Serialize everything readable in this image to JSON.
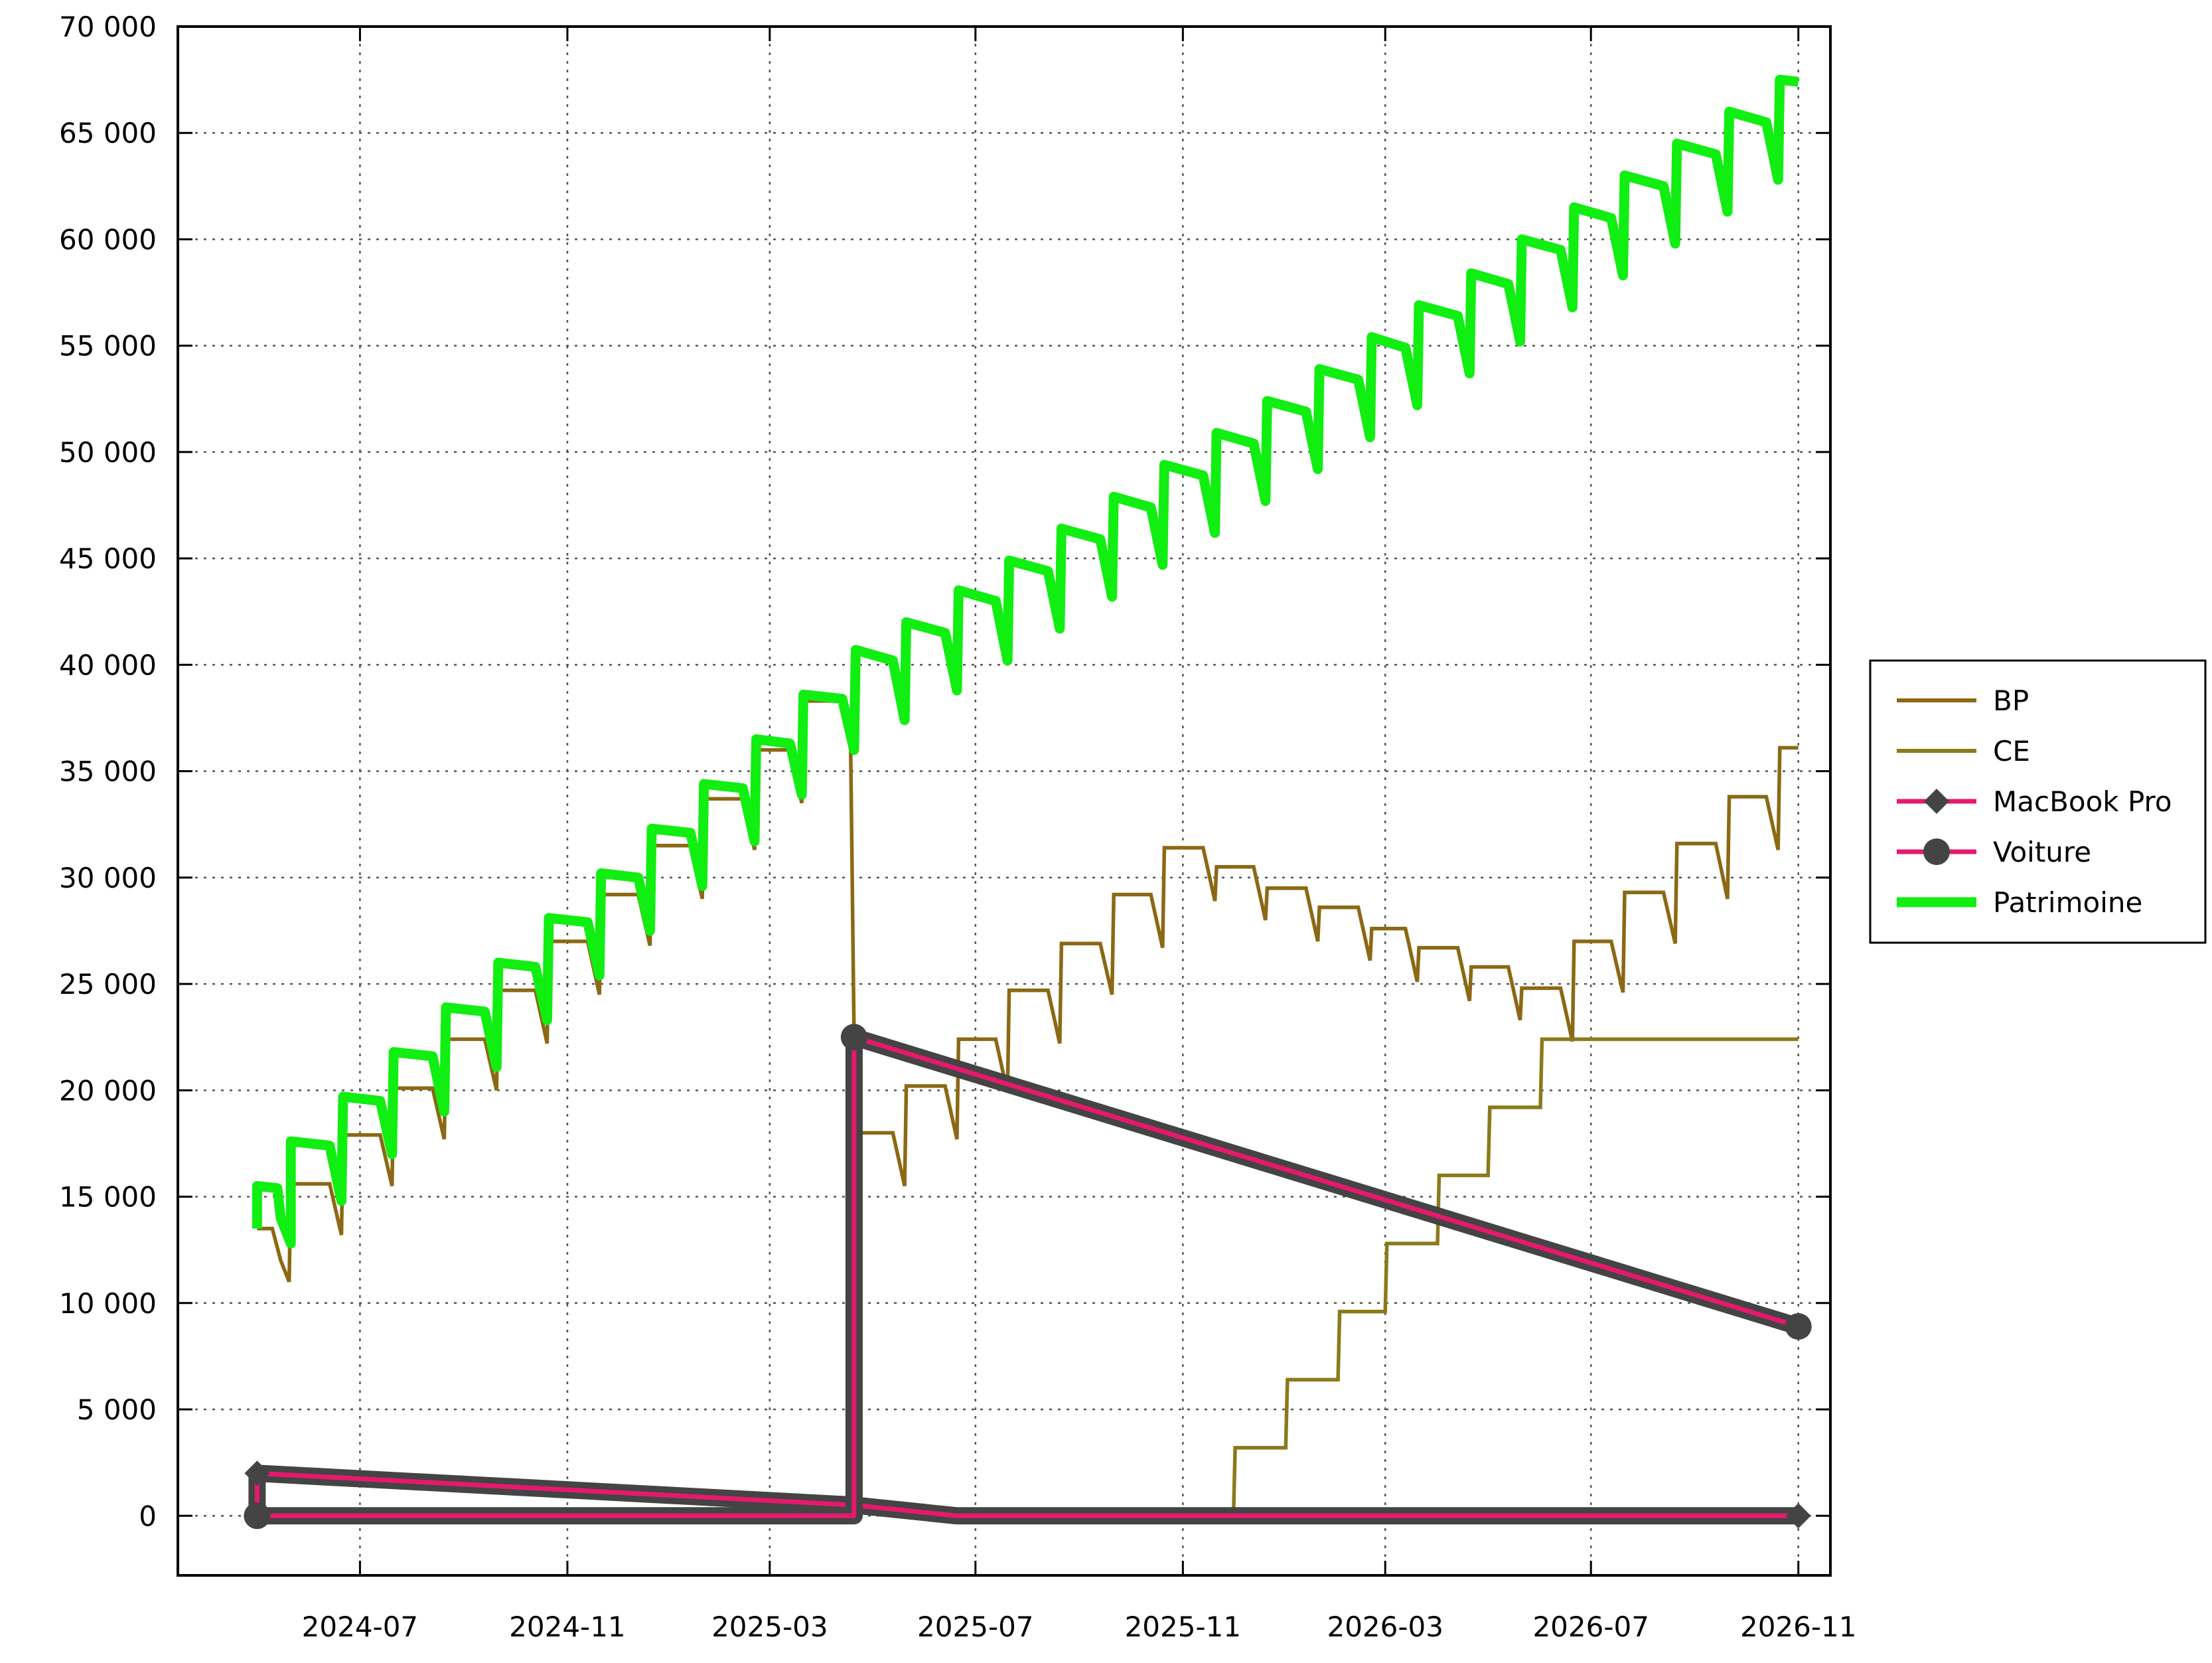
{
  "chart_data": {
    "type": "line",
    "title": "",
    "xlabel": "",
    "ylabel": "",
    "x_ticks": [
      "2024-07",
      "2024-11",
      "2025-03",
      "2025-07",
      "2025-11",
      "2026-03",
      "2026-07",
      "2026-11"
    ],
    "y_ticks": [
      "0",
      "5 000",
      "10 000",
      "15 000",
      "20 000",
      "25 000",
      "30 000",
      "35 000",
      "40 000",
      "45 000",
      "50 000",
      "55 000",
      "60 000",
      "65 000",
      "70 000"
    ],
    "xlim": [
      "2024-03-15",
      "2026-11-20"
    ],
    "ylim": [
      -2800,
      70000
    ],
    "grid": true,
    "legend_position": "right",
    "series": [
      {
        "name": "BP",
        "color": "#8b6914",
        "style": "line",
        "points": [
          [
            "2024-05-01",
            13500
          ],
          [
            "2024-05-10",
            13500
          ],
          [
            "2024-05-15",
            12000
          ],
          [
            "2024-05-20",
            11000
          ],
          [
            "2024-05-21",
            15600
          ],
          [
            "2024-06-13",
            15600
          ],
          [
            "2024-06-20",
            13200
          ],
          [
            "2024-06-21",
            17900
          ],
          [
            "2024-07-13",
            17900
          ],
          [
            "2024-07-20",
            15500
          ],
          [
            "2024-07-21",
            20100
          ],
          [
            "2024-08-13",
            20100
          ],
          [
            "2024-08-20",
            17700
          ],
          [
            "2024-08-21",
            22400
          ],
          [
            "2024-09-13",
            22400
          ],
          [
            "2024-09-20",
            20000
          ],
          [
            "2024-09-21",
            24700
          ],
          [
            "2024-10-13",
            24700
          ],
          [
            "2024-10-20",
            22200
          ],
          [
            "2024-10-21",
            27000
          ],
          [
            "2024-11-13",
            27000
          ],
          [
            "2024-11-20",
            24500
          ],
          [
            "2024-11-21",
            29200
          ],
          [
            "2024-12-13",
            29200
          ],
          [
            "2024-12-20",
            26800
          ],
          [
            "2024-12-21",
            31500
          ],
          [
            "2025-01-13",
            31500
          ],
          [
            "2025-01-20",
            29000
          ],
          [
            "2025-01-21",
            33700
          ],
          [
            "2025-02-13",
            33700
          ],
          [
            "2025-02-20",
            31300
          ],
          [
            "2025-02-21",
            36000
          ],
          [
            "2025-03-13",
            36000
          ],
          [
            "2025-03-20",
            33500
          ],
          [
            "2025-03-21",
            38300
          ],
          [
            "2025-04-13",
            38300
          ],
          [
            "2025-04-18",
            36000
          ],
          [
            "2025-04-20",
            22500
          ],
          [
            "2025-04-21",
            18000
          ],
          [
            "2025-05-13",
            18000
          ],
          [
            "2025-05-20",
            15500
          ],
          [
            "2025-05-21",
            20200
          ],
          [
            "2025-06-13",
            20200
          ],
          [
            "2025-06-20",
            17700
          ],
          [
            "2025-06-21",
            22400
          ],
          [
            "2025-07-13",
            22400
          ],
          [
            "2025-07-20",
            19900
          ],
          [
            "2025-07-21",
            24700
          ],
          [
            "2025-08-13",
            24700
          ],
          [
            "2025-08-20",
            22200
          ],
          [
            "2025-08-21",
            26900
          ],
          [
            "2025-09-13",
            26900
          ],
          [
            "2025-09-20",
            24500
          ],
          [
            "2025-09-21",
            29200
          ],
          [
            "2025-10-13",
            29200
          ],
          [
            "2025-10-20",
            26700
          ],
          [
            "2025-10-21",
            31400
          ],
          [
            "2025-11-13",
            31400
          ],
          [
            "2025-11-20",
            28900
          ],
          [
            "2025-11-21",
            30500
          ],
          [
            "2025-12-13",
            30500
          ],
          [
            "2025-12-20",
            28000
          ],
          [
            "2025-12-21",
            29500
          ],
          [
            "2026-01-13",
            29500
          ],
          [
            "2026-01-20",
            27000
          ],
          [
            "2026-01-21",
            28600
          ],
          [
            "2026-02-13",
            28600
          ],
          [
            "2026-02-20",
            26100
          ],
          [
            "2026-02-21",
            27600
          ],
          [
            "2026-03-13",
            27600
          ],
          [
            "2026-03-20",
            25100
          ],
          [
            "2026-03-21",
            26700
          ],
          [
            "2026-04-13",
            26700
          ],
          [
            "2026-04-20",
            24200
          ],
          [
            "2026-04-21",
            25800
          ],
          [
            "2026-05-13",
            25800
          ],
          [
            "2026-05-20",
            23300
          ],
          [
            "2026-05-21",
            24800
          ],
          [
            "2026-06-13",
            24800
          ],
          [
            "2026-06-20",
            22300
          ],
          [
            "2026-06-21",
            27000
          ],
          [
            "2026-07-13",
            27000
          ],
          [
            "2026-07-20",
            24600
          ],
          [
            "2026-07-21",
            29300
          ],
          [
            "2026-08-13",
            29300
          ],
          [
            "2026-08-20",
            26900
          ],
          [
            "2026-08-21",
            31600
          ],
          [
            "2026-09-13",
            31600
          ],
          [
            "2026-09-20",
            29000
          ],
          [
            "2026-09-21",
            33800
          ],
          [
            "2026-10-13",
            33800
          ],
          [
            "2026-10-20",
            31300
          ],
          [
            "2026-10-21",
            36100
          ],
          [
            "2026-11-01",
            36100
          ]
        ]
      },
      {
        "name": "CE",
        "color": "#8b7a1a",
        "style": "line",
        "points": [
          [
            "2025-12-01",
            0
          ],
          [
            "2025-12-02",
            3200
          ],
          [
            "2026-01-01",
            3200
          ],
          [
            "2026-01-02",
            6400
          ],
          [
            "2026-02-01",
            6400
          ],
          [
            "2026-02-02",
            9600
          ],
          [
            "2026-03-01",
            9600
          ],
          [
            "2026-03-02",
            12800
          ],
          [
            "2026-04-01",
            12800
          ],
          [
            "2026-04-02",
            16000
          ],
          [
            "2026-05-01",
            16000
          ],
          [
            "2026-05-02",
            19200
          ],
          [
            "2026-06-01",
            19200
          ],
          [
            "2026-06-02",
            22400
          ],
          [
            "2026-11-01",
            22400
          ]
        ]
      },
      {
        "name": "MacBook Pro",
        "color": "#e6196e",
        "outline": "#444444",
        "marker": "diamond",
        "points": [
          [
            "2024-05-01",
            0
          ],
          [
            "2024-05-01",
            2000
          ],
          [
            "2025-04-20",
            500
          ],
          [
            "2025-06-20",
            0
          ],
          [
            "2026-11-01",
            0
          ]
        ]
      },
      {
        "name": "Voiture",
        "color": "#e6196e",
        "outline": "#444444",
        "marker": "circle",
        "points": [
          [
            "2024-05-01",
            0
          ],
          [
            "2025-04-20",
            0
          ],
          [
            "2025-04-20",
            22500
          ],
          [
            "2026-11-01",
            8900
          ]
        ]
      },
      {
        "name": "Patrimoine",
        "color": "#11ee11",
        "style": "thick",
        "points": [
          [
            "2024-05-01",
            13500
          ],
          [
            "2024-05-01",
            15500
          ],
          [
            "2024-05-13",
            15400
          ],
          [
            "2024-05-15",
            14000
          ],
          [
            "2024-05-21",
            12800
          ],
          [
            "2024-05-21",
            17600
          ],
          [
            "2024-06-13",
            17400
          ],
          [
            "2024-06-20",
            14800
          ],
          [
            "2024-06-21",
            19700
          ],
          [
            "2024-07-13",
            19500
          ],
          [
            "2024-07-20",
            17000
          ],
          [
            "2024-07-21",
            21800
          ],
          [
            "2024-08-13",
            21600
          ],
          [
            "2024-08-20",
            19000
          ],
          [
            "2024-08-21",
            23900
          ],
          [
            "2024-09-13",
            23700
          ],
          [
            "2024-09-20",
            21100
          ],
          [
            "2024-09-21",
            26000
          ],
          [
            "2024-10-13",
            25800
          ],
          [
            "2024-10-20",
            23300
          ],
          [
            "2024-10-21",
            28100
          ],
          [
            "2024-11-13",
            27900
          ],
          [
            "2024-11-20",
            25400
          ],
          [
            "2024-11-21",
            30200
          ],
          [
            "2024-12-13",
            30000
          ],
          [
            "2024-12-20",
            27500
          ],
          [
            "2024-12-21",
            32300
          ],
          [
            "2025-01-13",
            32100
          ],
          [
            "2025-01-20",
            29600
          ],
          [
            "2025-01-21",
            34400
          ],
          [
            "2025-02-13",
            34200
          ],
          [
            "2025-02-20",
            31700
          ],
          [
            "2025-02-21",
            36500
          ],
          [
            "2025-03-13",
            36300
          ],
          [
            "2025-03-20",
            33900
          ],
          [
            "2025-03-21",
            38600
          ],
          [
            "2025-04-13",
            38400
          ],
          [
            "2025-04-20",
            36000
          ],
          [
            "2025-04-21",
            40700
          ],
          [
            "2025-05-13",
            40200
          ],
          [
            "2025-05-20",
            37400
          ],
          [
            "2025-05-21",
            42000
          ],
          [
            "2025-06-13",
            41500
          ],
          [
            "2025-06-20",
            38800
          ],
          [
            "2025-06-21",
            43500
          ],
          [
            "2025-07-13",
            43000
          ],
          [
            "2025-07-20",
            40200
          ],
          [
            "2025-07-21",
            44900
          ],
          [
            "2025-08-13",
            44400
          ],
          [
            "2025-08-20",
            41700
          ],
          [
            "2025-08-21",
            46400
          ],
          [
            "2025-09-13",
            45900
          ],
          [
            "2025-09-20",
            43200
          ],
          [
            "2025-09-21",
            47900
          ],
          [
            "2025-10-13",
            47400
          ],
          [
            "2025-10-20",
            44700
          ],
          [
            "2025-10-21",
            49400
          ],
          [
            "2025-11-13",
            48900
          ],
          [
            "2025-11-20",
            46200
          ],
          [
            "2025-11-21",
            50900
          ],
          [
            "2025-12-13",
            50400
          ],
          [
            "2025-12-20",
            47700
          ],
          [
            "2025-12-21",
            52400
          ],
          [
            "2026-01-13",
            51900
          ],
          [
            "2026-01-20",
            49200
          ],
          [
            "2026-01-21",
            53900
          ],
          [
            "2026-02-13",
            53400
          ],
          [
            "2026-02-20",
            50700
          ],
          [
            "2026-02-21",
            55400
          ],
          [
            "2026-03-13",
            54900
          ],
          [
            "2026-03-20",
            52200
          ],
          [
            "2026-03-21",
            56900
          ],
          [
            "2026-04-13",
            56400
          ],
          [
            "2026-04-20",
            53700
          ],
          [
            "2026-04-21",
            58400
          ],
          [
            "2026-05-13",
            57900
          ],
          [
            "2026-05-20",
            55200
          ],
          [
            "2026-05-21",
            60000
          ],
          [
            "2026-06-13",
            59500
          ],
          [
            "2026-06-20",
            56800
          ],
          [
            "2026-06-21",
            61500
          ],
          [
            "2026-07-13",
            61000
          ],
          [
            "2026-07-20",
            58300
          ],
          [
            "2026-07-21",
            63000
          ],
          [
            "2026-08-13",
            62500
          ],
          [
            "2026-08-20",
            59800
          ],
          [
            "2026-08-21",
            64500
          ],
          [
            "2026-09-13",
            64000
          ],
          [
            "2026-09-20",
            61300
          ],
          [
            "2026-09-21",
            66000
          ],
          [
            "2026-10-13",
            65500
          ],
          [
            "2026-10-20",
            62800
          ],
          [
            "2026-10-21",
            67500
          ],
          [
            "2026-11-01",
            67400
          ]
        ]
      }
    ]
  }
}
